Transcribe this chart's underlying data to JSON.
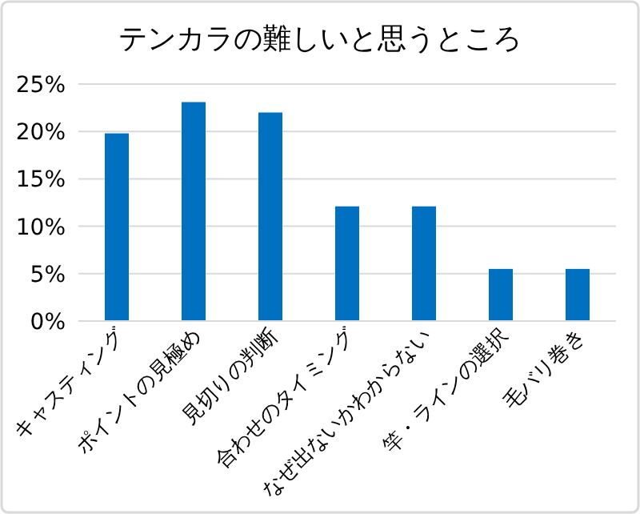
{
  "chart_data": {
    "type": "bar",
    "title": "テンカラの難しいと思うところ",
    "categories": [
      "キャスティング",
      "ポイントの見極め",
      "見切りの判断",
      "合わせのタイミング",
      "なぜ出ないかわからない",
      "竿・ラインの選択",
      "毛バリ巻き"
    ],
    "values": [
      19.8,
      23.1,
      22.0,
      12.1,
      12.1,
      5.5,
      5.5
    ],
    "color": "#0070c0",
    "ylim": [
      0,
      25
    ],
    "yticks": [
      {
        "value": 0,
        "label": "0%"
      },
      {
        "value": 5,
        "label": "5%"
      },
      {
        "value": 10,
        "label": "10%"
      },
      {
        "value": 15,
        "label": "15%"
      },
      {
        "value": 20,
        "label": "20%"
      },
      {
        "value": 25,
        "label": "25%"
      }
    ],
    "grid": "y"
  }
}
